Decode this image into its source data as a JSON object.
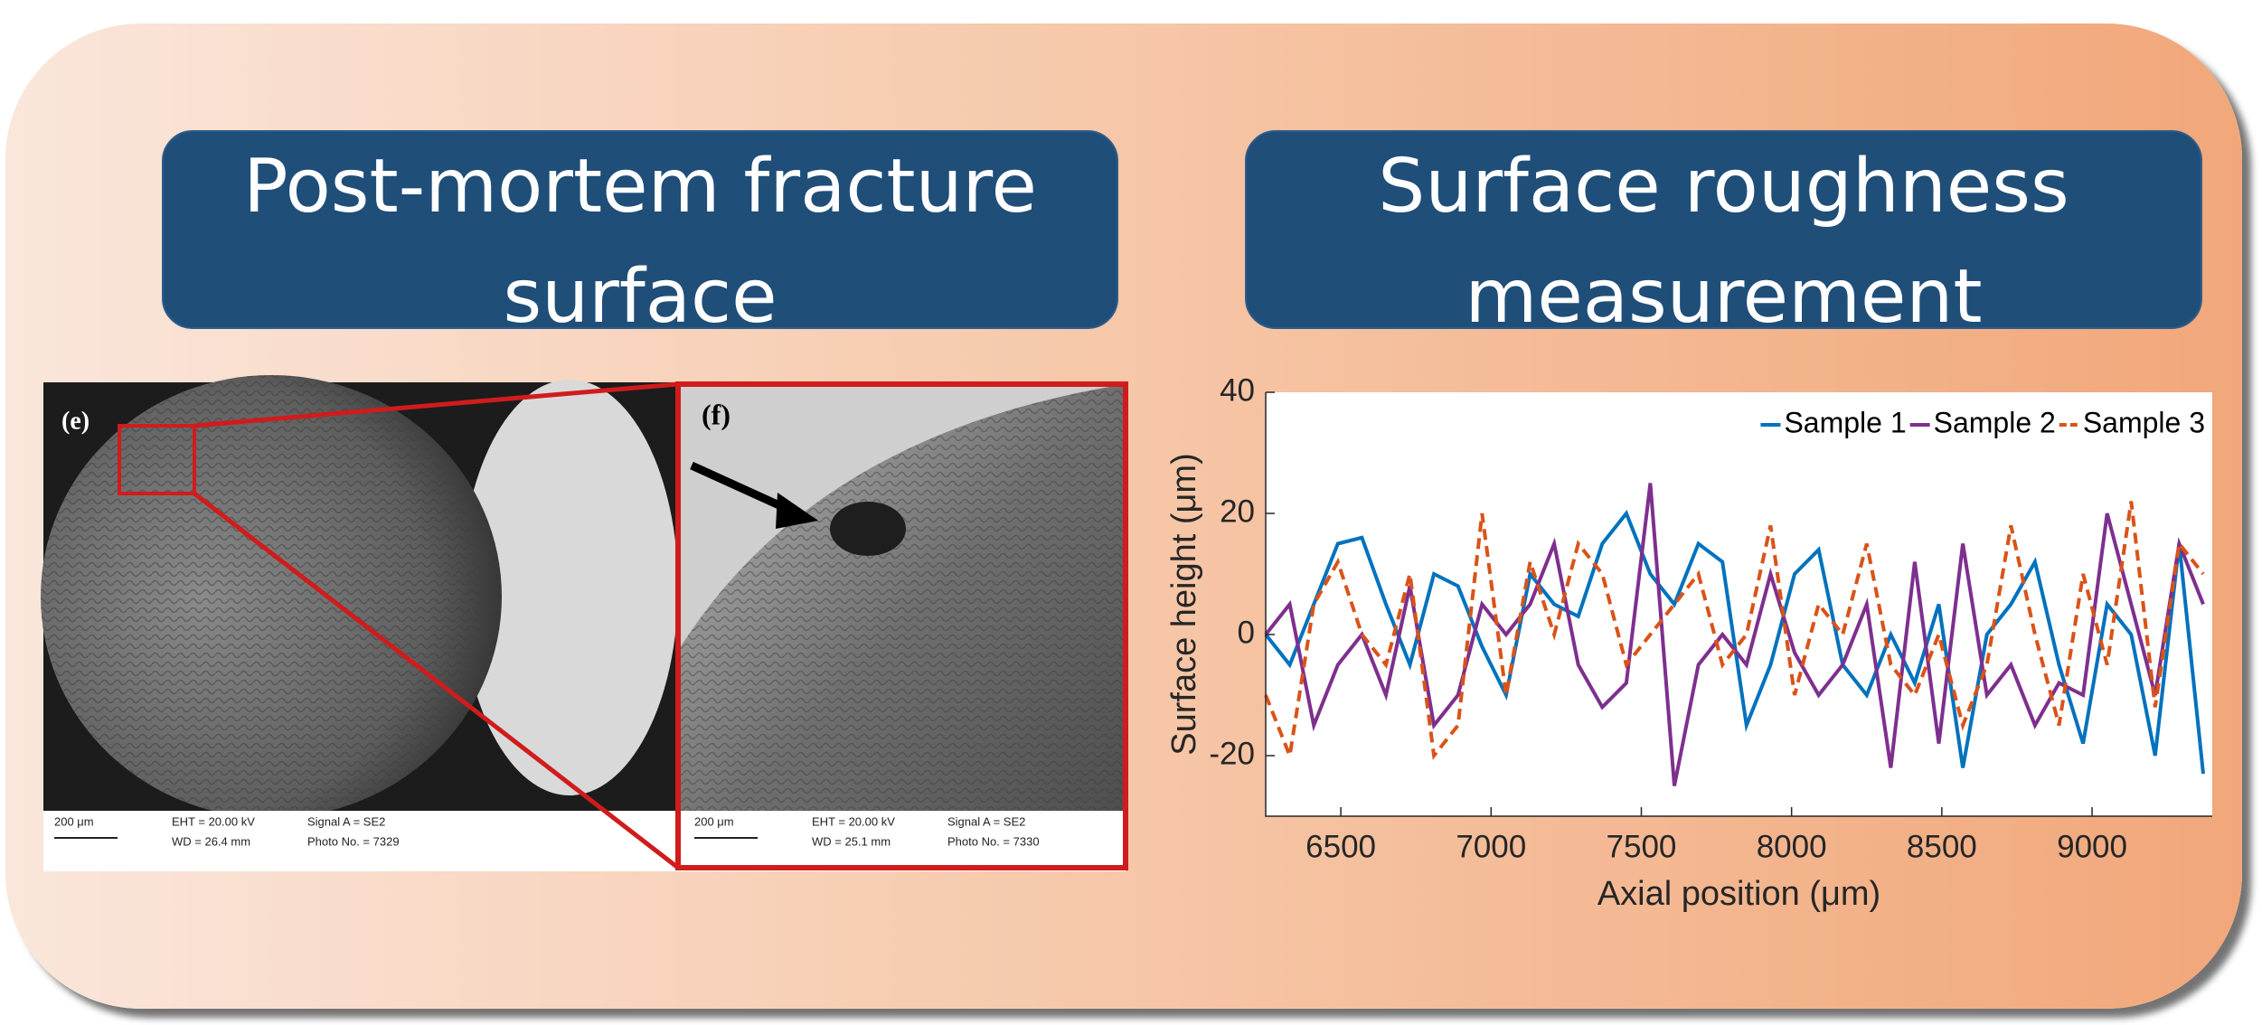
{
  "panels": [
    {
      "title": "Post-mortem fracture surface"
    },
    {
      "title": "Surface roughness measurement"
    }
  ],
  "sem_image": {
    "labels": [
      "(e)",
      "(f)"
    ],
    "info_bars": [
      {
        "scale": "200 μm",
        "eht": "EHT = 20.00 kV",
        "wd": "WD = 26.4 mm",
        "signal": "Signal A = SE2",
        "photo": "Photo No. = 7329"
      },
      {
        "scale": "200 μm",
        "eht": "EHT = 20.00 kV",
        "wd": "WD = 25.1 mm",
        "signal": "Signal A = SE2",
        "photo": "Photo No. = 7330"
      }
    ]
  },
  "chart_data": {
    "type": "line",
    "x_label": "Axial position (μm)",
    "y_label": "Surface height (μm)",
    "x": [
      6250,
      6330,
      6410,
      6490,
      6570,
      6650,
      6730,
      6810,
      6890,
      6970,
      7050,
      7130,
      7210,
      7290,
      7370,
      7450,
      7530,
      7610,
      7690,
      7770,
      7850,
      7930,
      8010,
      8090,
      8170,
      8250,
      8330,
      8410,
      8490,
      8570,
      8650,
      8730,
      8810,
      8890,
      8970,
      9050,
      9130,
      9210,
      9290,
      9370
    ],
    "series": [
      {
        "name": "Sample 1",
        "color": "#0072bd",
        "line_style": "solid",
        "values": [
          0,
          -5,
          5,
          15,
          16,
          5,
          -5,
          10,
          8,
          -2,
          -10,
          10,
          5,
          3,
          15,
          20,
          10,
          5,
          15,
          12,
          -15,
          -5,
          10,
          14,
          -5,
          -10,
          0,
          -8,
          5,
          -22,
          0,
          5,
          12,
          -5,
          -18,
          5,
          0,
          -20,
          15,
          -23
        ]
      },
      {
        "name": "Sample 2",
        "color": "#7e2f8e",
        "line_style": "solid",
        "values": [
          0,
          5,
          -15,
          -5,
          0,
          -10,
          8,
          -15,
          -10,
          5,
          0,
          5,
          15,
          -5,
          -12,
          -8,
          25,
          -25,
          -5,
          0,
          -5,
          10,
          -3,
          -10,
          -5,
          5,
          -22,
          12,
          -18,
          15,
          -10,
          -5,
          -15,
          -8,
          -10,
          20,
          5,
          -10,
          15,
          5
        ]
      },
      {
        "name": "Sample 3",
        "color": "#d95319",
        "line_style": "dashed",
        "values": [
          -10,
          -20,
          5,
          12,
          0,
          -5,
          10,
          -20,
          -15,
          20,
          -10,
          12,
          0,
          15,
          10,
          -5,
          0,
          5,
          10,
          -5,
          0,
          18,
          -10,
          5,
          0,
          15,
          -5,
          -10,
          0,
          -15,
          -5,
          18,
          0,
          -15,
          10,
          -5,
          22,
          -12,
          15,
          10
        ]
      }
    ],
    "xlim": [
      6250,
      9400
    ],
    "ylim": [
      -30,
      40
    ],
    "xticks": [
      6500,
      7000,
      7500,
      8000,
      8500,
      9000
    ],
    "yticks": [
      -20,
      0,
      20,
      40
    ],
    "legend": "top-right",
    "grid": false
  }
}
